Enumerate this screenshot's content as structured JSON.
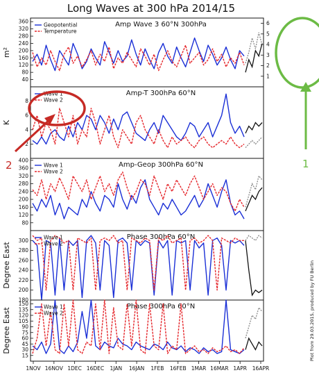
{
  "title": "Long Waves at 300 hPa 2014/15",
  "credit": "Plot from 29.03.2015, produced by FU Berlin",
  "colors": {
    "blue": "#1a2fd6",
    "red": "#e5262b",
    "black": "#111111",
    "gray": "#888888",
    "annoRed": "#c62a25",
    "annoGreen": "#6cbb45"
  },
  "annotations": {
    "red_label": "2",
    "green_label": "1"
  },
  "xaxis": {
    "labels": [
      "1NOV",
      "16NOV",
      "1DEC",
      "16DEC",
      "1JAN",
      "16JAN",
      "1FEB",
      "16FEB",
      "1MAR",
      "16MAR",
      "1APR",
      "16APR"
    ]
  },
  "right_axis": {
    "ticks": [
      "6",
      "5",
      "4",
      "3",
      "2",
      "1"
    ]
  },
  "chart_data": [
    {
      "type": "line",
      "title": "Amp Wave 3 60°N 300hPa",
      "ylabel": "m²",
      "ylim": [
        0,
        380
      ],
      "yticks": [
        "40",
        "80",
        "120",
        "160",
        "200",
        "240",
        "280",
        "320",
        "360"
      ],
      "legend": [
        "Geopotential",
        "Temperature"
      ],
      "series": [
        {
          "name": "Geopotential",
          "color": "blue",
          "style": "solid",
          "values": [
            140,
            180,
            120,
            230,
            150,
            90,
            200,
            160,
            120,
            240,
            180,
            100,
            140,
            210,
            160,
            120,
            250,
            190,
            130,
            200,
            140,
            170,
            260,
            180,
            120,
            210,
            150,
            100,
            190,
            240,
            170,
            130,
            220,
            160,
            110,
            190,
            270,
            200,
            140,
            230,
            180,
            120,
            160,
            220,
            150,
            100,
            200,
            170
          ]
        },
        {
          "name": "Temperature",
          "color": "red",
          "style": "dashed",
          "values": [
            190,
            110,
            160,
            120,
            200,
            140,
            90,
            180,
            220,
            130,
            170,
            110,
            150,
            200,
            120,
            180,
            140,
            220,
            100,
            160,
            130,
            190,
            150,
            110,
            210,
            170,
            120,
            180,
            90,
            150,
            200,
            140,
            110,
            170,
            230,
            130,
            160,
            190,
            120,
            150,
            210,
            140,
            180,
            110,
            160,
            130,
            190,
            120
          ]
        }
      ],
      "forecast": [
        {
          "color": "black",
          "style": "solid",
          "values": [
            80,
            150,
            110,
            200,
            170,
            240
          ]
        },
        {
          "color": "gray",
          "style": "dashed",
          "values": [
            130,
            190,
            270,
            210,
            300,
            230
          ]
        }
      ]
    },
    {
      "type": "line",
      "title": "Amp-T 300hPa 60°N",
      "ylabel": "K",
      "ylim": [
        0,
        10
      ],
      "yticks": [
        "2",
        "4",
        "6",
        "8"
      ],
      "legend": [
        "Wave 1",
        "Wave 2"
      ],
      "series": [
        {
          "name": "Wave 1",
          "color": "blue",
          "style": "solid",
          "values": [
            2.5,
            2,
            3,
            2,
            3.5,
            4,
            3,
            2.5,
            4.5,
            3,
            5,
            4,
            6,
            5.5,
            4,
            6,
            5,
            3.5,
            5.5,
            4,
            6,
            6.5,
            5,
            3.5,
            3,
            2.5,
            4,
            5,
            3.5,
            6,
            5,
            4,
            3,
            2.5,
            3.5,
            5,
            4.5,
            3,
            4,
            5,
            3,
            4.5,
            6,
            9,
            5,
            3.5,
            4.5,
            3
          ]
        },
        {
          "name": "Wave 2",
          "color": "red",
          "style": "dashed",
          "values": [
            4,
            6,
            3,
            5,
            4,
            2,
            7,
            5,
            3,
            6,
            2,
            4,
            3,
            7,
            5,
            2,
            4,
            6,
            3,
            1.5,
            4,
            3,
            2,
            5,
            6,
            4,
            3,
            2,
            4,
            2.5,
            1.5,
            3,
            2,
            2.5,
            3,
            2,
            1.5,
            2.5,
            3,
            2,
            1.5,
            2,
            2.5,
            2,
            3,
            2,
            1.5,
            2
          ]
        }
      ],
      "forecast": [
        {
          "color": "black",
          "style": "solid",
          "values": [
            3.5,
            4.5,
            4,
            5,
            4.5,
            5
          ]
        },
        {
          "color": "gray",
          "style": "dashed",
          "values": [
            1.5,
            2,
            2.5,
            2,
            2.5,
            3
          ]
        }
      ]
    },
    {
      "type": "line",
      "title": "Amp-Geop 300hPa 60°N",
      "ylabel": "",
      "ylim": [
        40,
        410
      ],
      "yticks": [
        "80",
        "120",
        "160",
        "200",
        "240",
        "280",
        "320",
        "360",
        "400"
      ],
      "legend": [
        "Wave 1",
        "Wave 2"
      ],
      "series": [
        {
          "name": "Wave 1",
          "color": "blue",
          "style": "solid",
          "values": [
            180,
            140,
            200,
            160,
            220,
            120,
            180,
            100,
            160,
            140,
            120,
            200,
            160,
            240,
            180,
            140,
            220,
            200,
            160,
            280,
            200,
            150,
            220,
            180,
            260,
            300,
            200,
            160,
            120,
            180,
            150,
            200,
            160,
            120,
            140,
            180,
            220,
            160,
            200,
            280,
            220,
            160,
            240,
            300,
            180,
            120,
            140,
            100
          ]
        },
        {
          "name": "Wave 2",
          "color": "red",
          "style": "dashed",
          "values": [
            250,
            220,
            300,
            200,
            280,
            240,
            310,
            260,
            200,
            320,
            280,
            240,
            300,
            200,
            260,
            320,
            240,
            280,
            220,
            300,
            340,
            260,
            200,
            240,
            300,
            280,
            220,
            320,
            260,
            200,
            280,
            240,
            300,
            260,
            220,
            280,
            320,
            260,
            200,
            240,
            280,
            220,
            260,
            240,
            180,
            140,
            200,
            160
          ]
        }
      ],
      "forecast": [
        {
          "color": "black",
          "style": "solid",
          "values": [
            140,
            180,
            220,
            200,
            240,
            260
          ]
        },
        {
          "color": "gray",
          "style": "dashed",
          "values": [
            160,
            220,
            280,
            250,
            320,
            300
          ]
        }
      ]
    },
    {
      "type": "line",
      "title": "Phase 300hPa 60°N",
      "ylabel": "Degree East",
      "ylim": [
        180,
        320
      ],
      "yticks": [
        "300",
        "280",
        "260",
        "240",
        "220",
        "200",
        "180"
      ],
      "legend": [
        "Wave 1",
        "Wave 2"
      ],
      "series": [
        {
          "name": "Wave 1",
          "color": "blue",
          "style": "solid",
          "values": [
            300,
            290,
            180,
            300,
            295,
            190,
            305,
            200,
            300,
            290,
            300,
            185,
            300,
            310,
            295,
            200,
            300,
            290,
            185,
            300,
            305,
            295,
            200,
            300,
            290,
            300,
            295,
            190,
            300,
            285,
            300,
            190,
            300,
            295,
            300,
            200,
            300,
            285,
            295,
            190,
            300,
            305,
            290,
            200,
            300,
            295,
            300,
            290
          ]
        },
        {
          "name": "Wave 2",
          "color": "red",
          "style": "dashed",
          "values": [
            310,
            300,
            305,
            200,
            300,
            310,
            305,
            295,
            300,
            200,
            305,
            300,
            295,
            305,
            200,
            300,
            305,
            300,
            310,
            295,
            300,
            200,
            305,
            300,
            295,
            305,
            300,
            200,
            305,
            300,
            310,
            295,
            300,
            305,
            200,
            300,
            305,
            295,
            300,
            310,
            300,
            200,
            305,
            300,
            295,
            305,
            300,
            300
          ]
        }
      ],
      "forecast": [
        {
          "color": "black",
          "style": "solid",
          "values": [
            300,
            240,
            190,
            200,
            195,
            200
          ]
        },
        {
          "color": "gray",
          "style": "dashed",
          "values": [
            300,
            310,
            305,
            300,
            310,
            305
          ]
        }
      ]
    },
    {
      "type": "line",
      "title": "Phase 300hPa 60°N",
      "ylabel": "Degree East",
      "ylim": [
        0,
        160
      ],
      "yticks": [
        "15",
        "30",
        "45",
        "60",
        "75",
        "90",
        "105",
        "120",
        "135",
        "150"
      ],
      "legend": [
        "Wave 1",
        "Wave 2"
      ],
      "series": [
        {
          "name": "Wave 1",
          "color": "blue",
          "style": "solid",
          "values": [
            40,
            30,
            50,
            20,
            45,
            160,
            30,
            20,
            40,
            25,
            50,
            130,
            60,
            160,
            40,
            30,
            50,
            40,
            35,
            60,
            45,
            40,
            30,
            50,
            40,
            35,
            30,
            45,
            40,
            30,
            50,
            35,
            30,
            40,
            25,
            35,
            30,
            20,
            35,
            25,
            30,
            20,
            25,
            160,
            30,
            25,
            20,
            30
          ]
        },
        {
          "name": "Wave 2",
          "color": "red",
          "style": "dashed",
          "values": [
            20,
            60,
            150,
            40,
            130,
            30,
            20,
            150,
            40,
            160,
            30,
            20,
            50,
            40,
            150,
            30,
            160,
            20,
            140,
            40,
            30,
            150,
            40,
            160,
            30,
            20,
            150,
            40,
            30,
            150,
            20,
            40,
            30,
            150,
            20,
            30,
            40,
            25,
            30,
            20,
            35,
            25,
            30,
            40,
            25,
            30,
            20,
            35
          ]
        }
      ],
      "forecast": [
        {
          "color": "black",
          "style": "solid",
          "values": [
            30,
            60,
            45,
            30,
            50,
            40
          ]
        },
        {
          "color": "gray",
          "style": "dashed",
          "values": [
            60,
            90,
            120,
            110,
            140,
            130
          ]
        }
      ]
    }
  ]
}
